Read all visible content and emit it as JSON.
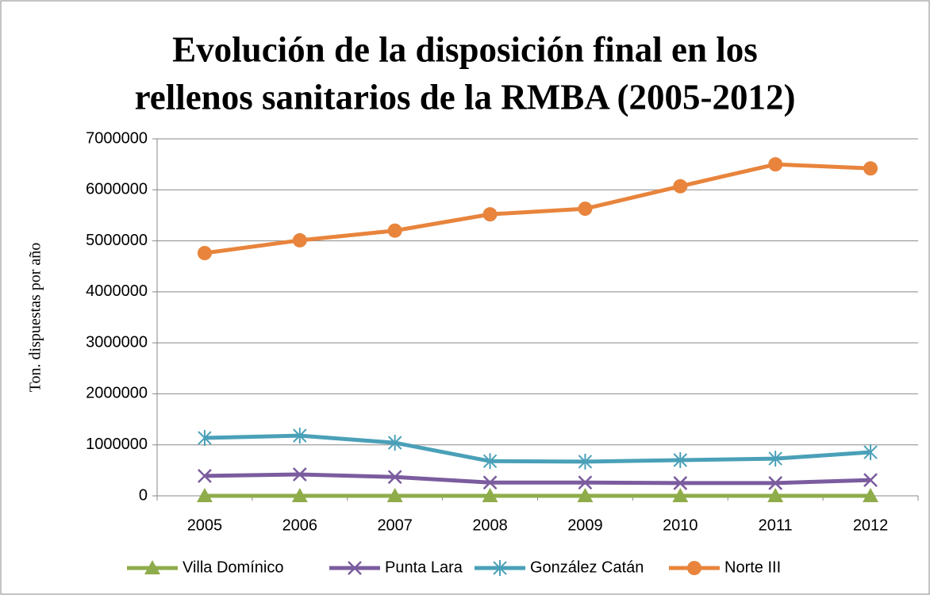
{
  "chart_data": {
    "type": "line",
    "title": [
      "Evolución de la disposición final en los",
      "rellenos sanitarios de la RMBA (2005-2012)"
    ],
    "y_label": "Ton. dispuestas por año",
    "categories": [
      "2005",
      "2006",
      "2007",
      "2008",
      "2009",
      "2010",
      "2011",
      "2012"
    ],
    "series": [
      {
        "name": "Villa Domínico",
        "color": "#8fac4a",
        "marker": "triangle",
        "values": [
          0,
          0,
          0,
          0,
          0,
          0,
          0,
          0
        ]
      },
      {
        "name": "Punta Lara",
        "color": "#7b5c9e",
        "marker": "x",
        "values": [
          390000,
          420000,
          370000,
          260000,
          260000,
          250000,
          250000,
          310000
        ]
      },
      {
        "name": "González Catán",
        "color": "#4aa0b8",
        "marker": "star",
        "values": [
          1135000,
          1180000,
          1040000,
          680000,
          670000,
          700000,
          730000,
          855000
        ]
      },
      {
        "name": "Norte III",
        "color": "#e8843c",
        "marker": "circle",
        "values": [
          4760000,
          5010000,
          5200000,
          5520000,
          5630000,
          6070000,
          6500000,
          6420000
        ]
      }
    ],
    "ylim": [
      0,
      7000000
    ],
    "yticks": [
      0,
      1000000,
      2000000,
      3000000,
      4000000,
      5000000,
      6000000,
      7000000
    ],
    "grid": true,
    "legend": "bottom"
  }
}
